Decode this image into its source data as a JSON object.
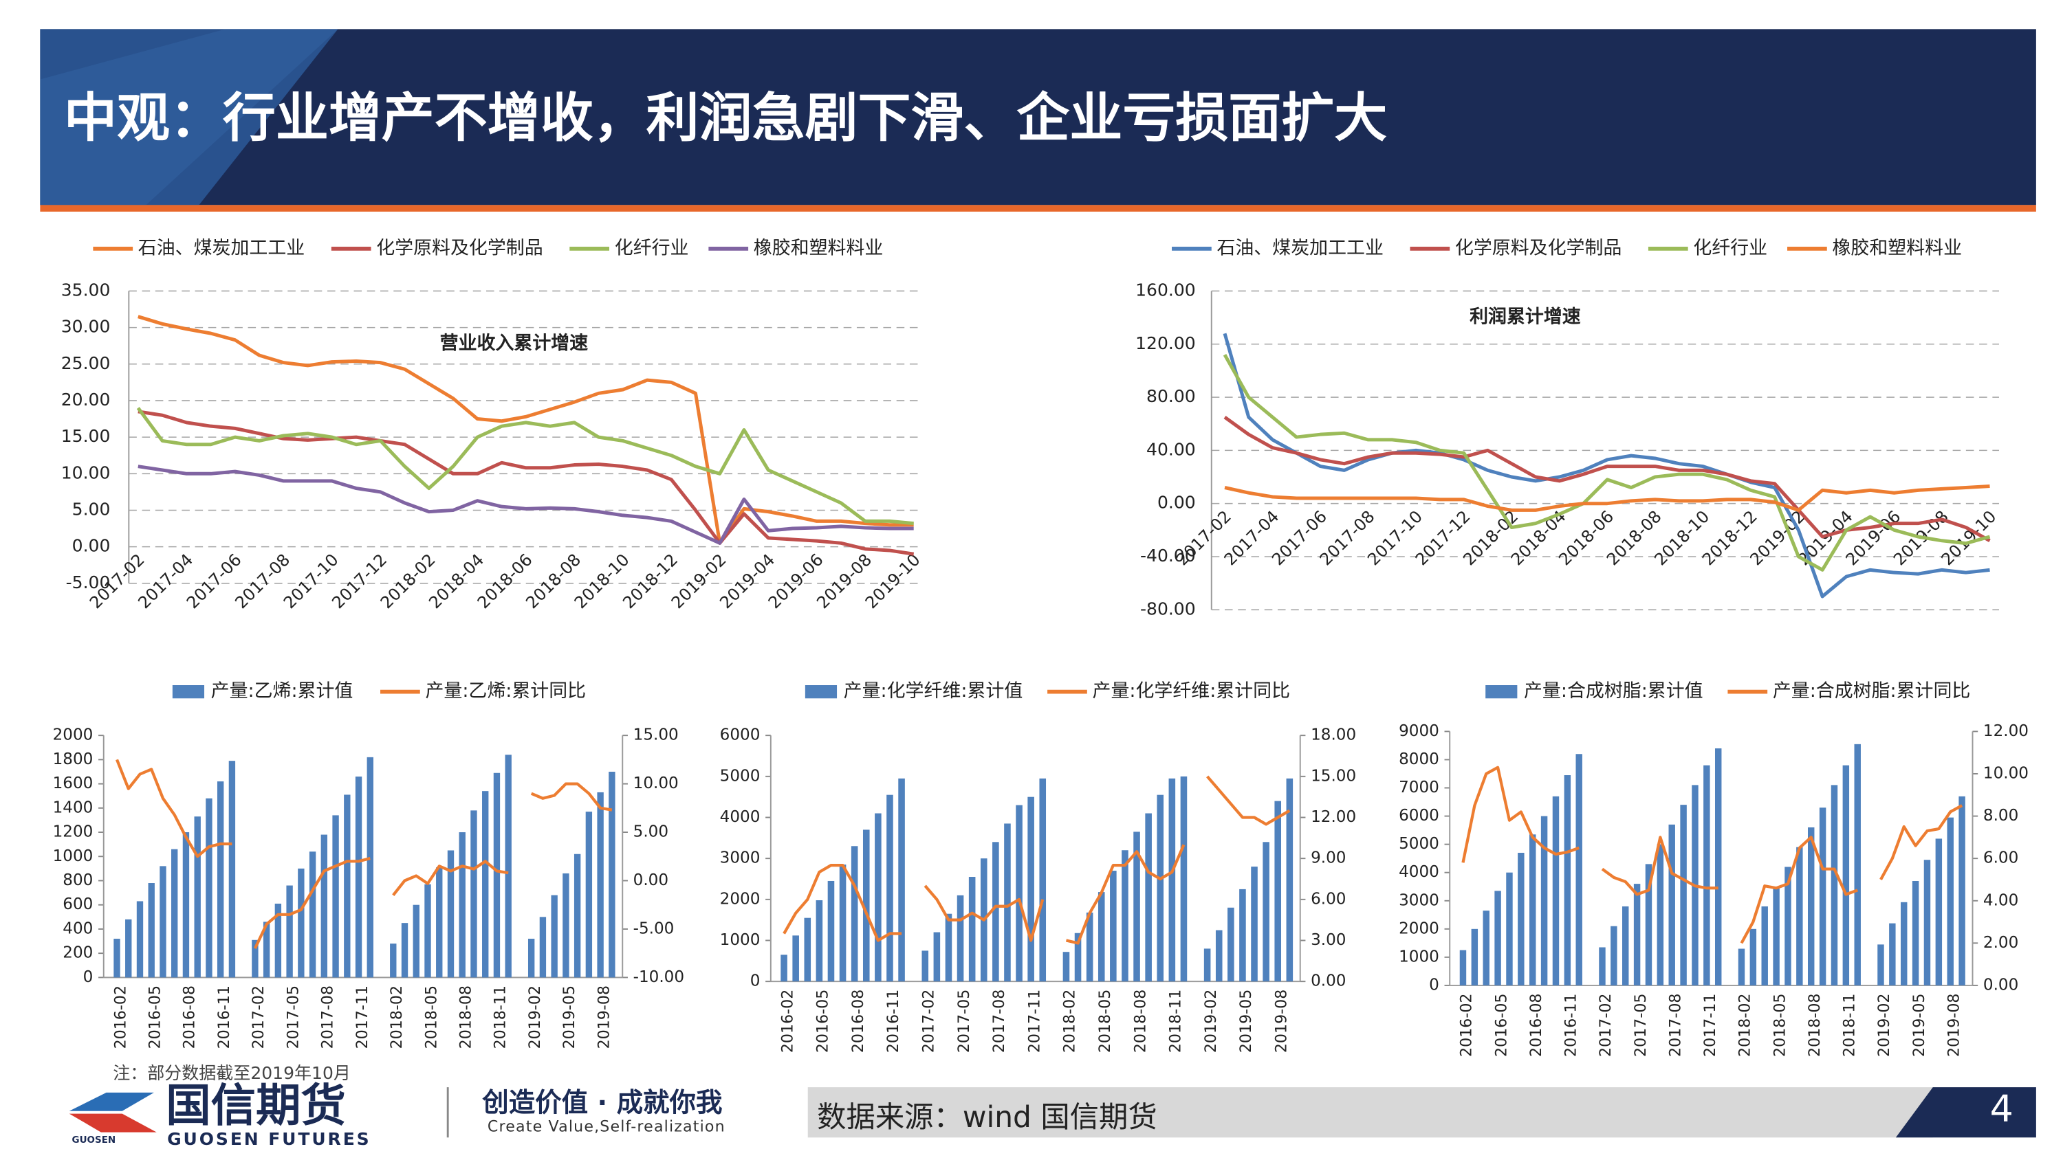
{
  "header": {
    "title": "中观：行业增产不增收，利润急剧下滑、企业亏损面扩大"
  },
  "chart_data": [
    {
      "type": "line",
      "annotation": "营业收入累计增速",
      "categories": [
        "2017-02",
        null,
        "2017-04",
        null,
        "2017-06",
        null,
        "2017-08",
        null,
        "2017-10",
        null,
        "2017-12",
        null,
        "2018-02",
        null,
        "2018-04",
        null,
        "2018-06",
        null,
        "2018-08",
        null,
        "2018-10",
        null,
        "2018-12",
        null,
        "2019-02",
        null,
        "2019-04",
        null,
        "2019-06",
        null,
        "2019-08",
        null,
        "2019-10"
      ],
      "series": [
        {
          "name": "石油、煤炭加工工业",
          "color": "#ED7D31",
          "values": [
            31.5,
            30.5,
            29.8,
            29.2,
            28.3,
            26.2,
            25.2,
            24.8,
            25.3,
            25.4,
            25.2,
            24.3,
            22.3,
            20.3,
            17.5,
            17.2,
            17.8,
            18.8,
            19.8,
            21,
            21.5,
            22.8,
            22.5,
            21,
            0.5,
            5.2,
            4.8,
            4.2,
            3.5,
            3.5,
            3.2,
            3,
            3
          ]
        },
        {
          "name": "化学原料及化学制品",
          "color": "#C0504D",
          "values": [
            18.5,
            18,
            17,
            16.5,
            16.2,
            15.5,
            14.8,
            14.6,
            14.8,
            15,
            14.5,
            14,
            12,
            10,
            10,
            11.5,
            10.8,
            10.8,
            11.2,
            11.3,
            11,
            10.5,
            9.2,
            5,
            0.5,
            4.5,
            1.2,
            1,
            0.8,
            0.5,
            -0.3,
            -0.5,
            -1
          ]
        },
        {
          "name": "化纤行业",
          "color": "#9BBB59",
          "values": [
            19,
            14.5,
            14,
            14,
            15,
            14.5,
            15.2,
            15.5,
            15,
            14,
            14.5,
            11,
            8,
            11,
            15,
            16.5,
            17,
            16.5,
            17,
            15,
            14.5,
            13.5,
            12.5,
            11,
            10,
            16,
            10.5,
            9,
            7.5,
            6,
            3.5,
            3.5,
            3.2
          ]
        },
        {
          "name": "橡胶和塑料料业",
          "color": "#8064A2",
          "values": [
            11,
            10.5,
            10,
            10,
            10.3,
            9.8,
            9,
            9,
            9,
            8,
            7.5,
            6,
            4.8,
            5,
            6.3,
            5.5,
            5.2,
            5.3,
            5.2,
            4.8,
            4.3,
            4,
            3.5,
            2,
            0.5,
            6.5,
            2.2,
            2.5,
            2.6,
            2.8,
            2.6,
            2.5,
            2.5
          ]
        }
      ],
      "ylim": [
        -5,
        35
      ],
      "yticks": [
        {
          "value": -5,
          "label": "-5.00"
        },
        {
          "value": 0,
          "label": "0.00"
        },
        {
          "value": 5,
          "label": "5.00"
        },
        {
          "value": 10,
          "label": "10.00"
        },
        {
          "value": 15,
          "label": "15.00"
        },
        {
          "value": 20,
          "label": "20.00"
        },
        {
          "value": 25,
          "label": "25.00"
        },
        {
          "value": 30,
          "label": "30.00"
        },
        {
          "value": 35,
          "label": "35.00"
        }
      ],
      "grid": true,
      "legend": "top"
    },
    {
      "type": "line",
      "annotation": "利润累计增速",
      "categories": [
        "2017-02",
        null,
        "2017-04",
        null,
        "2017-06",
        null,
        "2017-08",
        null,
        "2017-10",
        null,
        "2017-12",
        null,
        "2018-02",
        null,
        "2018-04",
        null,
        "2018-06",
        null,
        "2018-08",
        null,
        "2018-10",
        null,
        "2018-12",
        null,
        "2019-02",
        null,
        "2019-04",
        null,
        "2019-06",
        null,
        "2019-08",
        null,
        "2019-10"
      ],
      "series": [
        {
          "name": "石油、煤炭加工工业",
          "color": "#4F81BD",
          "values": [
            128,
            65,
            48,
            38,
            28,
            25,
            33,
            38,
            40,
            38,
            33,
            25,
            20,
            17,
            20,
            25,
            33,
            36,
            34,
            30,
            28,
            22,
            16,
            12,
            -20,
            -70,
            -55,
            -50,
            -52,
            -53,
            -50,
            -52,
            -50
          ]
        },
        {
          "name": "化学原料及化学制品",
          "color": "#C0504D",
          "values": [
            65,
            52,
            42,
            38,
            33,
            30,
            35,
            38,
            38,
            37,
            35,
            40,
            30,
            20,
            17,
            22,
            28,
            28,
            28,
            25,
            25,
            22,
            17,
            15,
            -5,
            -25,
            -20,
            -18,
            -15,
            -15,
            -12,
            -18,
            -28
          ]
        },
        {
          "name": "化纤行业",
          "color": "#9BBB59",
          "values": [
            112,
            80,
            65,
            50,
            52,
            53,
            48,
            48,
            46,
            40,
            38,
            10,
            -18,
            -15,
            -8,
            0,
            18,
            12,
            20,
            22,
            22,
            18,
            10,
            5,
            -40,
            -50,
            -20,
            -10,
            -20,
            -25,
            -28,
            -30,
            -25
          ]
        },
        {
          "name": "橡胶和塑料料业",
          "color": "#ED7D31",
          "values": [
            12,
            8,
            5,
            4,
            4,
            4,
            4,
            4,
            4,
            3,
            3,
            -2,
            -5,
            -5,
            -2,
            0,
            0,
            2,
            3,
            2,
            2,
            3,
            3,
            1,
            -5,
            10,
            8,
            10,
            8,
            10,
            11,
            12,
            13
          ]
        }
      ],
      "ylim": [
        -80,
        160
      ],
      "yticks": [
        {
          "value": -80,
          "label": "-80.00"
        },
        {
          "value": -40,
          "label": "-40.00"
        },
        {
          "value": 0,
          "label": "0.00"
        },
        {
          "value": 40,
          "label": "40.00"
        },
        {
          "value": 80,
          "label": "80.00"
        },
        {
          "value": 120,
          "label": "120.00"
        },
        {
          "value": 160,
          "label": "160.00"
        }
      ],
      "grid": true,
      "legend": "top"
    },
    {
      "type": "bar-line",
      "categories": [
        "2016-02",
        null,
        null,
        "2016-05",
        null,
        null,
        "2016-08",
        null,
        null,
        "2016-11",
        null,
        null,
        "2017-02",
        null,
        null,
        "2017-05",
        null,
        null,
        "2017-08",
        null,
        null,
        "2017-11",
        null,
        null,
        "2018-02",
        null,
        null,
        "2018-05",
        null,
        null,
        "2018-08",
        null,
        null,
        "2018-11",
        null,
        null,
        "2019-02",
        null,
        null,
        "2019-05",
        null,
        null,
        "2019-08",
        null
      ],
      "series": [
        {
          "name": "产量:乙烯:累计值",
          "type": "bar",
          "color": "#4F81BD",
          "values": [
            320,
            480,
            630,
            780,
            920,
            1060,
            1200,
            1330,
            1480,
            1620,
            1790,
            null,
            310,
            460,
            610,
            760,
            900,
            1040,
            1180,
            1340,
            1510,
            1660,
            1820,
            null,
            280,
            450,
            600,
            770,
            910,
            1050,
            1200,
            1380,
            1540,
            1690,
            1840,
            null,
            320,
            500,
            680,
            860,
            1020,
            1370,
            1530,
            1700
          ]
        },
        {
          "name": "产量:乙烯:累计同比",
          "type": "line",
          "axis": "y2",
          "color": "#ED7D31",
          "values": [
            12.5,
            9.5,
            11,
            11.5,
            8.5,
            6.8,
            4.5,
            2.5,
            3.5,
            3.8,
            3.8,
            null,
            -7,
            -4.5,
            -3.5,
            -3.5,
            -3,
            -1,
            1,
            1.5,
            2,
            2,
            2.3,
            null,
            -1.5,
            0,
            0.5,
            -0.3,
            1.5,
            1,
            1.5,
            1.2,
            2,
            1,
            0.8,
            null,
            9,
            8.5,
            8.8,
            10,
            10,
            9,
            7.5,
            7.3
          ]
        }
      ],
      "ylim": [
        0,
        2000
      ],
      "yticks": [
        0,
        200,
        400,
        600,
        800,
        1000,
        1200,
        1400,
        1600,
        1800,
        2000
      ],
      "y2lim": [
        -10,
        15
      ],
      "y2ticks": [
        {
          "value": -10,
          "label": "-10.00"
        },
        {
          "value": -5,
          "label": "-5.00"
        },
        {
          "value": 0,
          "label": "0.00"
        },
        {
          "value": 5,
          "label": "5.00"
        },
        {
          "value": 10,
          "label": "10.00"
        },
        {
          "value": 15,
          "label": "15.00"
        }
      ],
      "grid": false,
      "legend": "top"
    },
    {
      "type": "bar-line",
      "categories": [
        "2016-02",
        null,
        null,
        "2016-05",
        null,
        null,
        "2016-08",
        null,
        null,
        "2016-11",
        null,
        null,
        "2017-02",
        null,
        null,
        "2017-05",
        null,
        null,
        "2017-08",
        null,
        null,
        "2017-11",
        null,
        null,
        "2018-02",
        null,
        null,
        "2018-05",
        null,
        null,
        "2018-08",
        null,
        null,
        "2018-11",
        null,
        null,
        "2019-02",
        null,
        null,
        "2019-05",
        null,
        null,
        "2019-08",
        null
      ],
      "series": [
        {
          "name": "产量:化学纤维:累计值",
          "type": "bar",
          "color": "#4F81BD",
          "values": [
            650,
            1120,
            1550,
            1980,
            2450,
            2850,
            3300,
            3700,
            4100,
            4550,
            4950,
            null,
            750,
            1200,
            1650,
            2100,
            2550,
            3000,
            3400,
            3850,
            4300,
            4500,
            4950,
            null,
            720,
            1180,
            1680,
            2180,
            2700,
            3200,
            3650,
            4100,
            4550,
            4950,
            5000,
            null,
            800,
            1250,
            1800,
            2250,
            2800,
            3400,
            4400,
            4950
          ]
        },
        {
          "name": "产量:化学纤维:累计同比",
          "type": "line",
          "axis": "y2",
          "color": "#ED7D31",
          "values": [
            3.5,
            5,
            6,
            8,
            8.5,
            8.5,
            7,
            5,
            3,
            3.5,
            3.5,
            null,
            7,
            6,
            4.5,
            4.5,
            5,
            4.5,
            5.5,
            5.5,
            6,
            3,
            6,
            null,
            3,
            2.8,
            5,
            6.5,
            8.5,
            8.5,
            9.5,
            8,
            7.5,
            8,
            10,
            null,
            15,
            14,
            13,
            12,
            12,
            11.5,
            12,
            12.5
          ]
        }
      ],
      "ylim": [
        0,
        6000
      ],
      "yticks": [
        0,
        1000,
        2000,
        3000,
        4000,
        5000,
        6000
      ],
      "y2lim": [
        0,
        18
      ],
      "y2ticks": [
        {
          "value": 0,
          "label": "0.00"
        },
        {
          "value": 3,
          "label": "3.00"
        },
        {
          "value": 6,
          "label": "6.00"
        },
        {
          "value": 9,
          "label": "9.00"
        },
        {
          "value": 12,
          "label": "12.00"
        },
        {
          "value": 15,
          "label": "15.00"
        },
        {
          "value": 18,
          "label": "18.00"
        }
      ],
      "grid": false,
      "legend": "top"
    },
    {
      "type": "bar-line",
      "categories": [
        "2016-02",
        null,
        null,
        "2016-05",
        null,
        null,
        "2016-08",
        null,
        null,
        "2016-11",
        null,
        null,
        "2017-02",
        null,
        null,
        "2017-05",
        null,
        null,
        "2017-08",
        null,
        null,
        "2017-11",
        null,
        null,
        "2018-02",
        null,
        null,
        "2018-05",
        null,
        null,
        "2018-08",
        null,
        null,
        "2018-11",
        null,
        null,
        "2019-02",
        null,
        null,
        "2019-05",
        null,
        null,
        "2019-08",
        null
      ],
      "series": [
        {
          "name": "产量:合成树脂:累计值",
          "type": "bar",
          "color": "#4F81BD",
          "values": [
            1250,
            2000,
            2650,
            3350,
            4000,
            4700,
            5350,
            6000,
            6700,
            7450,
            8200,
            null,
            1350,
            2100,
            2800,
            3600,
            4300,
            5000,
            5700,
            6400,
            7100,
            7800,
            8400,
            null,
            1300,
            2000,
            2800,
            3500,
            4200,
            4900,
            5600,
            6300,
            7100,
            7800,
            8550,
            null,
            1450,
            2200,
            2950,
            3700,
            4450,
            5200,
            5950,
            6700
          ]
        },
        {
          "name": "产量:合成树脂:累计同比",
          "type": "line",
          "axis": "y2",
          "color": "#ED7D31",
          "values": [
            5.8,
            8.5,
            10,
            10.3,
            7.8,
            8.2,
            7,
            6.5,
            6.2,
            6.3,
            6.5,
            null,
            5.5,
            5.1,
            4.9,
            4.3,
            4.5,
            7,
            5.3,
            5,
            4.7,
            4.6,
            4.6,
            null,
            2,
            3,
            4.7,
            4.6,
            4.8,
            6.5,
            7,
            5.5,
            5.5,
            4.3,
            4.5,
            null,
            5,
            6,
            7.5,
            6.6,
            7.3,
            7.4,
            8.2,
            8.5
          ]
        }
      ],
      "ylim": [
        0,
        9000
      ],
      "yticks": [
        0,
        1000,
        2000,
        3000,
        4000,
        5000,
        6000,
        7000,
        8000,
        9000
      ],
      "y2lim": [
        0,
        12
      ],
      "y2ticks": [
        {
          "value": 0,
          "label": "0.00"
        },
        {
          "value": 2,
          "label": "2.00"
        },
        {
          "value": 4,
          "label": "4.00"
        },
        {
          "value": 6,
          "label": "6.00"
        },
        {
          "value": 8,
          "label": "8.00"
        },
        {
          "value": 10,
          "label": "10.00"
        },
        {
          "value": 12,
          "label": "12.00"
        }
      ],
      "grid": false,
      "legend": "top"
    }
  ],
  "footer": {
    "note": "注：部分数据截至2019年10月",
    "logo_cn": "国信期货",
    "logo_small": "GUOSEN",
    "logo_en": "GUOSEN FUTURES",
    "slogan_cn": "创造价值 · 成就你我",
    "slogan_en": "Create Value,Self-realization",
    "source": "数据来源：wind 国信期货",
    "page": "4"
  }
}
